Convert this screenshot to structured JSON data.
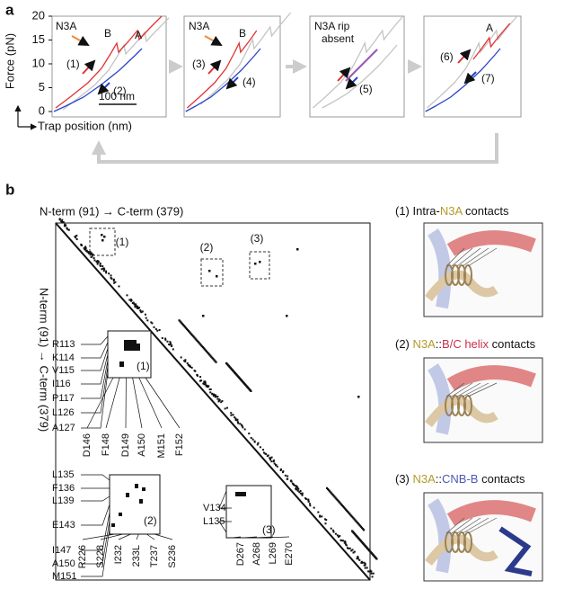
{
  "panel_a": {
    "label": "a",
    "y_axis_label": "Force (pN)",
    "x_axis_label": "Trap position (nm)",
    "y_ticks": [
      0,
      5,
      10,
      15,
      20
    ],
    "scale_bar": "100 nm",
    "plots": [
      {
        "annotations": [
          "N3A",
          "B",
          "A",
          "(1)",
          "(2)"
        ]
      },
      {
        "annotations": [
          "N3A",
          "B",
          "(3)",
          "(4)"
        ]
      },
      {
        "annotations": [
          "N3A rip",
          "absent",
          "(5)"
        ]
      },
      {
        "annotations": [
          "A",
          "(6)",
          "(7)"
        ]
      }
    ]
  },
  "panel_b": {
    "label": "b",
    "x_axis_label": "N-term (91) → C-term (379)",
    "y_axis_label": "N-term (91) → C-term (379)",
    "regions": [
      "(1)",
      "(2)",
      "(3)"
    ],
    "insets": [
      {
        "y_labels": [
          "R113",
          "K114",
          "V115",
          "I116",
          "P117",
          "L126",
          "A127"
        ],
        "x_labels": [
          "D146",
          "F148",
          "D149",
          "A150",
          "M151",
          "F152"
        ],
        "tag": "(1)"
      },
      {
        "y_labels": [
          "L135",
          "F136",
          "L139",
          "E143",
          "I147",
          "A150",
          "M151"
        ],
        "x_labels": [
          "R226",
          "S228",
          "I232",
          "233L",
          "T237",
          "S236"
        ],
        "tag": "(2)"
      },
      {
        "y_labels": [
          "V134",
          "L135"
        ],
        "x_labels": [
          "D267",
          "A268",
          "L269",
          "E270"
        ],
        "tag": "(3)"
      }
    ],
    "structures": [
      {
        "caption": [
          "(1) Intra-",
          "N3A",
          " contacts"
        ]
      },
      {
        "caption": [
          "(2) ",
          "N3A",
          "::",
          "B/C helix",
          " contacts"
        ]
      },
      {
        "caption": [
          "(3) ",
          "N3A",
          "::",
          "CNB-B",
          " contacts"
        ]
      }
    ]
  }
}
